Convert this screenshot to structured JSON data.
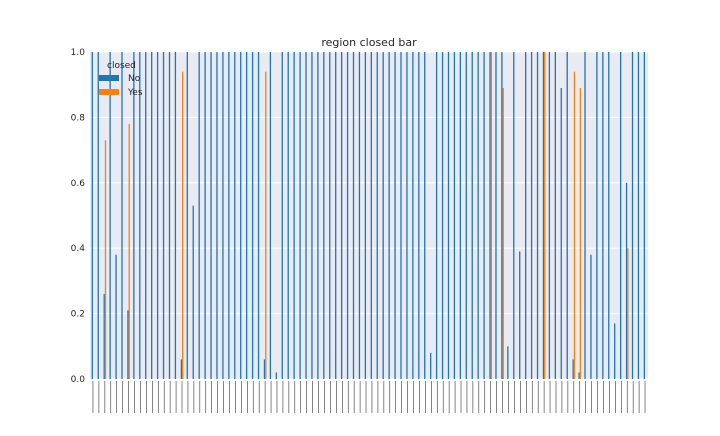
{
  "chart_data": {
    "type": "bar",
    "title": "region closed bar",
    "xlabel": "",
    "ylabel": "",
    "ylim": [
      0,
      1.0
    ],
    "yticks": [
      0.0,
      0.2,
      0.4,
      0.6,
      0.8,
      1.0
    ],
    "ytick_labels": [
      "0.0",
      "0.2",
      "0.4",
      "0.6",
      "0.8",
      "1.0"
    ],
    "grid": true,
    "legend": {
      "title": "closed",
      "placement": "top-left"
    },
    "colors": {
      "No": "#1f77b4",
      "Yes": "#ff7f0e",
      "plot_bg": "#eaeaf2",
      "grid": "#ffffff"
    },
    "category_count": 94,
    "series": [
      {
        "name": "No",
        "values": [
          1.0,
          1.0,
          0.26,
          1.0,
          0.38,
          1.0,
          0.21,
          1.0,
          1.0,
          1.0,
          1.0,
          1.0,
          1.0,
          1.0,
          1.0,
          0.06,
          1.0,
          0.53,
          1.0,
          1.0,
          1.0,
          1.0,
          1.0,
          1.0,
          1.0,
          1.0,
          1.0,
          1.0,
          1.0,
          0.06,
          1.0,
          0.02,
          1.0,
          1.0,
          1.0,
          1.0,
          1.0,
          1.0,
          1.0,
          1.0,
          1.0,
          1.0,
          1.0,
          1.0,
          1.0,
          1.0,
          1.0,
          1.0,
          1.0,
          1.0,
          1.0,
          1.0,
          1.0,
          1.0,
          1.0,
          1.0,
          1.0,
          0.08,
          1.0,
          1.0,
          1.0,
          1.0,
          1.0,
          1.0,
          1.0,
          1.0,
          1.0,
          1.0,
          1.0,
          1.0,
          0.1,
          1.0,
          0.39,
          1.0,
          1.0,
          1.0,
          1.0,
          1.0,
          1.0,
          0.89,
          1.0,
          0.06,
          0.02,
          1.0,
          0.38,
          1.0,
          1.0,
          1.0,
          0.17,
          1.0,
          0.6,
          1.0,
          1.0,
          1.0
        ]
      },
      {
        "name": "Yes",
        "values": [
          0,
          0,
          0.73,
          0,
          0,
          0,
          0.78,
          0,
          0,
          0,
          0,
          0,
          0,
          0,
          0,
          0.94,
          0,
          0,
          0,
          0,
          0,
          0,
          0,
          0,
          0,
          0,
          0,
          0,
          0,
          0.94,
          0,
          0,
          0,
          0,
          0,
          0,
          0,
          0,
          0,
          0,
          0,
          0,
          0,
          0,
          0,
          0,
          0,
          0,
          0,
          0,
          0,
          0,
          0,
          0,
          0,
          0,
          0,
          0,
          0,
          0,
          0,
          0,
          0,
          0,
          0,
          0,
          0,
          1.0,
          0,
          0.89,
          0,
          0,
          0,
          0,
          0,
          0,
          1.0,
          0,
          0,
          0,
          0,
          0.94,
          0.89,
          0,
          0,
          0,
          0,
          0,
          0,
          0,
          0.4,
          0,
          0,
          0
        ]
      }
    ]
  }
}
